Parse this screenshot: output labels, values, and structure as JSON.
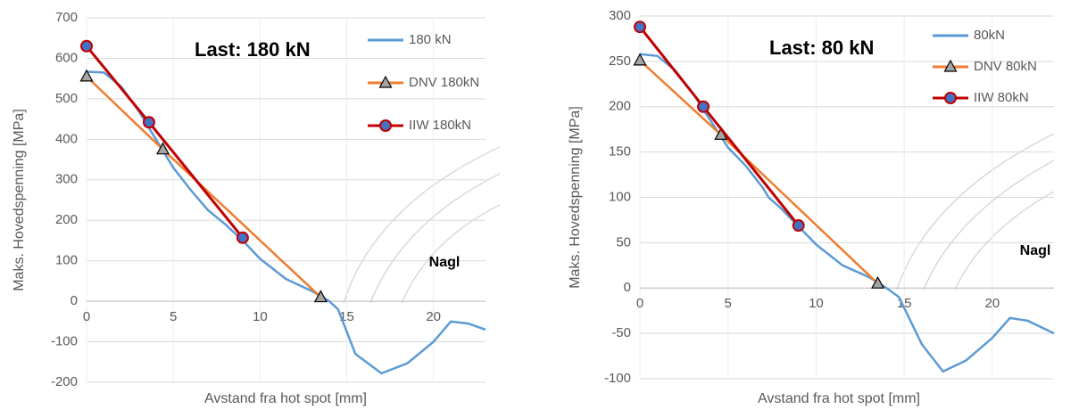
{
  "chart_data": [
    {
      "type": "line",
      "annotations": [
        "Last: 180 kN",
        "Nagl"
      ],
      "x_label": "Avstand fra hot spot [mm]",
      "y_label": "Maks. Hovedspenning [MPa]",
      "xlim": [
        0,
        23
      ],
      "xticks": [
        0,
        5,
        10,
        15,
        20
      ],
      "ylim": [
        -200,
        700
      ],
      "yticks": [
        -200,
        -100,
        0,
        100,
        200,
        300,
        400,
        500,
        600,
        700
      ],
      "grid": true,
      "legend": "upper right",
      "series": [
        {
          "name": "180 kN",
          "color": "#5b9bd5",
          "marker": "none",
          "x": [
            0,
            1,
            2,
            3,
            4,
            5,
            6,
            7,
            8,
            9,
            10,
            11.5,
            13,
            14,
            14.5,
            15.5,
            17,
            18.5,
            20,
            21,
            22,
            23
          ],
          "values": [
            567,
            565,
            530,
            470,
            400,
            330,
            275,
            225,
            190,
            150,
            105,
            55,
            25,
            0,
            -20,
            -130,
            -178,
            -153,
            -100,
            -50,
            -55,
            -70
          ]
        },
        {
          "name": "DNV 180kN",
          "color": "#ed7d31",
          "marker": "triangle",
          "x": [
            0,
            4.4,
            13.5
          ],
          "values": [
            555,
            375,
            10
          ]
        },
        {
          "name": "IIW 180kN",
          "color": "#c00000",
          "marker": "circle",
          "x": [
            0,
            3.6,
            9
          ],
          "values": [
            630,
            442,
            157
          ]
        }
      ]
    },
    {
      "type": "line",
      "annotations": [
        "Last: 80 kN",
        "Nagl"
      ],
      "x_label": "Avstand fra hot spot [mm]",
      "y_label": "Maks. Hovedspenning  [MPa]",
      "xlim": [
        0,
        23.5
      ],
      "xticks": [
        0,
        5,
        10,
        15,
        20
      ],
      "ylim": [
        -100,
        300
      ],
      "yticks": [
        -100,
        -50,
        0,
        50,
        100,
        150,
        200,
        250,
        300
      ],
      "grid": true,
      "legend": "upper right",
      "series": [
        {
          "name": "80kN",
          "color": "#5b9bd5",
          "marker": "none",
          "x": [
            0,
            1,
            2,
            3,
            4,
            5,
            6,
            7,
            7.3,
            8,
            9,
            10,
            11.5,
            13,
            14,
            14.7,
            16,
            17.2,
            18.5,
            20,
            21,
            22,
            23.5
          ],
          "values": [
            258,
            256,
            240,
            215,
            185,
            155,
            135,
            110,
            100,
            88,
            68,
            48,
            25,
            12,
            0,
            -10,
            -62,
            -92,
            -80,
            -55,
            -33,
            -36,
            -50
          ]
        },
        {
          "name": "DNV 80kN",
          "color": "#ed7d31",
          "marker": "triangle",
          "x": [
            0,
            4.6,
            13.5
          ],
          "values": [
            251,
            169,
            5
          ]
        },
        {
          "name": "IIW 80kN",
          "color": "#c00000",
          "marker": "circle",
          "x": [
            0,
            3.6,
            9
          ],
          "values": [
            288,
            200,
            69
          ]
        }
      ]
    }
  ]
}
